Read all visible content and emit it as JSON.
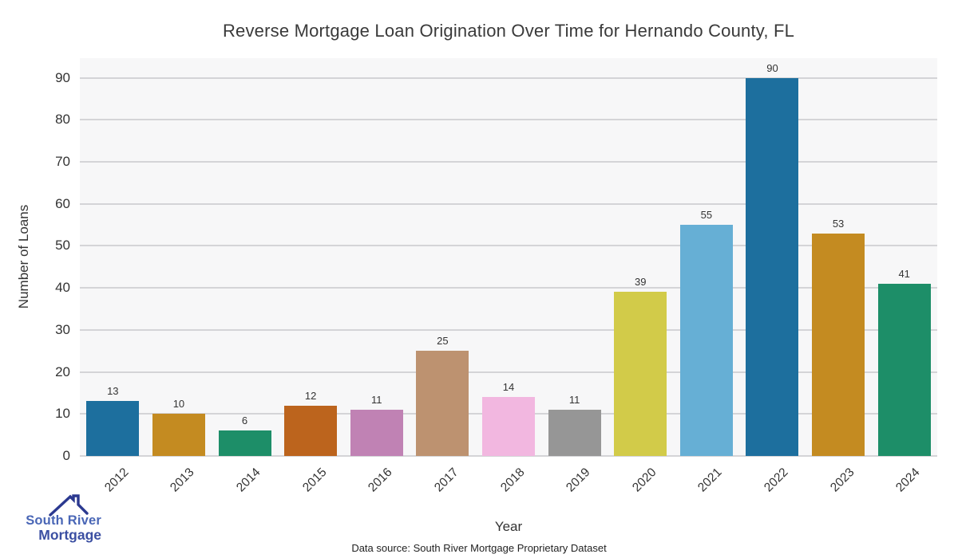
{
  "figure": {
    "title": "Reverse Mortgage Loan Origination Over Time for Hernando County, FL",
    "caption": "Data source: South River Mortgage Proprietary Dataset"
  },
  "chart_data": {
    "type": "bar",
    "title": "Reverse Mortgage Loan Origination Over Time for Hernando County, FL",
    "categories": [
      "2012",
      "2013",
      "2014",
      "2015",
      "2016",
      "2017",
      "2018",
      "2019",
      "2020",
      "2021",
      "2022",
      "2023",
      "2024"
    ],
    "values": [
      13,
      10,
      6,
      12,
      11,
      25,
      14,
      11,
      39,
      55,
      90,
      53,
      41
    ],
    "bar_colors": [
      "#1d6f9e",
      "#c48b21",
      "#1d8e68",
      "#bc641d",
      "#c082b4",
      "#bd9270",
      "#f2b7e0",
      "#969696",
      "#d2cb49",
      "#66afd5",
      "#1d6f9e",
      "#c48b21",
      "#1d8e68"
    ],
    "xlabel": "Year",
    "ylabel": "Number of Loans",
    "yticks": [
      0,
      10,
      20,
      30,
      40,
      50,
      60,
      70,
      80,
      90
    ],
    "ylim": [
      0,
      94.65
    ],
    "grid": "horizontal",
    "legend": "none",
    "plot_bg_color": "#f7f7f8",
    "grid_color": "#d4d4d7",
    "text_color": "#3a3a3a",
    "value_labels_shown": true
  },
  "logo": {
    "line1": "South River",
    "line2": "Mortgage",
    "line1_color": "#4966b6",
    "line2_color": "#3b4fa2",
    "roof_color": "#2b3990"
  }
}
